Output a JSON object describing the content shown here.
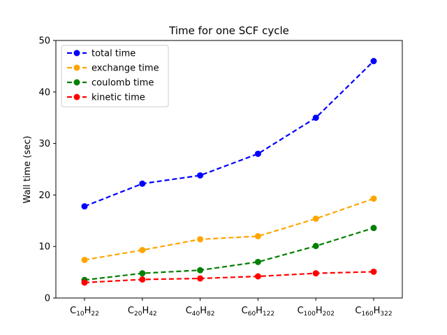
{
  "chart_data": {
    "type": "line",
    "title": "Time for one SCF cycle",
    "xlabel": "",
    "ylabel": "Wall time (sec)",
    "ylim": [
      0,
      50
    ],
    "yticks": [
      0,
      10,
      20,
      30,
      40,
      50
    ],
    "grid": false,
    "legend_position": "top-left",
    "categories": [
      "C10H22",
      "C20H42",
      "C40H82",
      "C60H122",
      "C100H202",
      "C160H322"
    ],
    "category_parts": [
      [
        [
          "C",
          false
        ],
        [
          "10",
          true
        ],
        [
          "H",
          false
        ],
        [
          "22",
          true
        ]
      ],
      [
        [
          "C",
          false
        ],
        [
          "20",
          true
        ],
        [
          "H",
          false
        ],
        [
          "42",
          true
        ]
      ],
      [
        [
          "C",
          false
        ],
        [
          "40",
          true
        ],
        [
          "H",
          false
        ],
        [
          "82",
          true
        ]
      ],
      [
        [
          "C",
          false
        ],
        [
          "60",
          true
        ],
        [
          "H",
          false
        ],
        [
          "122",
          true
        ]
      ],
      [
        [
          "C",
          false
        ],
        [
          "100",
          true
        ],
        [
          "H",
          false
        ],
        [
          "202",
          true
        ]
      ],
      [
        [
          "C",
          false
        ],
        [
          "160",
          true
        ],
        [
          "H",
          false
        ],
        [
          "322",
          true
        ]
      ]
    ],
    "series": [
      {
        "name": "total time",
        "color": "#0000ff",
        "values": [
          17.8,
          22.2,
          23.8,
          28.0,
          35.0,
          46.0
        ]
      },
      {
        "name": "exchange time",
        "color": "#ffa500",
        "values": [
          7.4,
          9.3,
          11.4,
          12.0,
          15.4,
          19.3
        ]
      },
      {
        "name": "coulomb time",
        "color": "#008000",
        "values": [
          3.5,
          4.8,
          5.4,
          7.0,
          10.1,
          13.6
        ]
      },
      {
        "name": "kinetic time",
        "color": "#ff0000",
        "values": [
          3.0,
          3.6,
          3.8,
          4.2,
          4.8,
          5.1
        ]
      }
    ]
  }
}
